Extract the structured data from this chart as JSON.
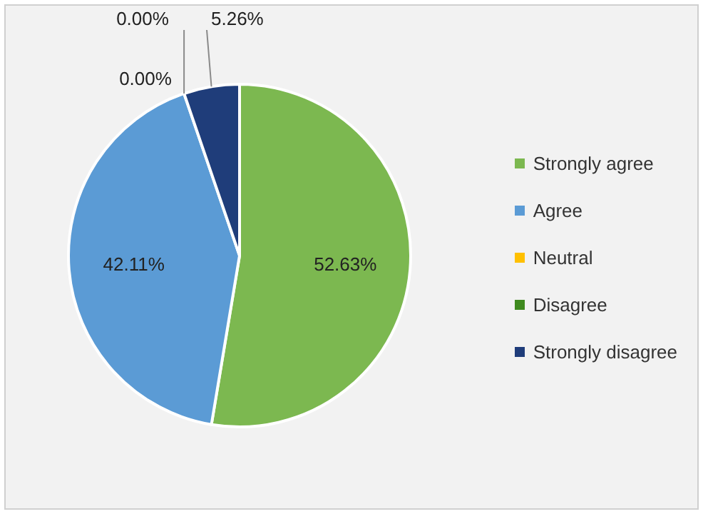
{
  "chart_data": {
    "type": "pie",
    "categories": [
      "Strongly agree",
      "Agree",
      "Neutral",
      "Disagree",
      "Strongly disagree"
    ],
    "values": [
      52.63,
      42.11,
      0,
      0,
      5.26
    ],
    "value_labels": [
      "52.63%",
      "42.11%",
      "0.00%",
      "0.00%",
      "5.26%"
    ],
    "colors": [
      "#7cb850",
      "#5b9bd5",
      "#ffc000",
      "#3f8a1f",
      "#1f3d7a"
    ],
    "legend": "right"
  }
}
